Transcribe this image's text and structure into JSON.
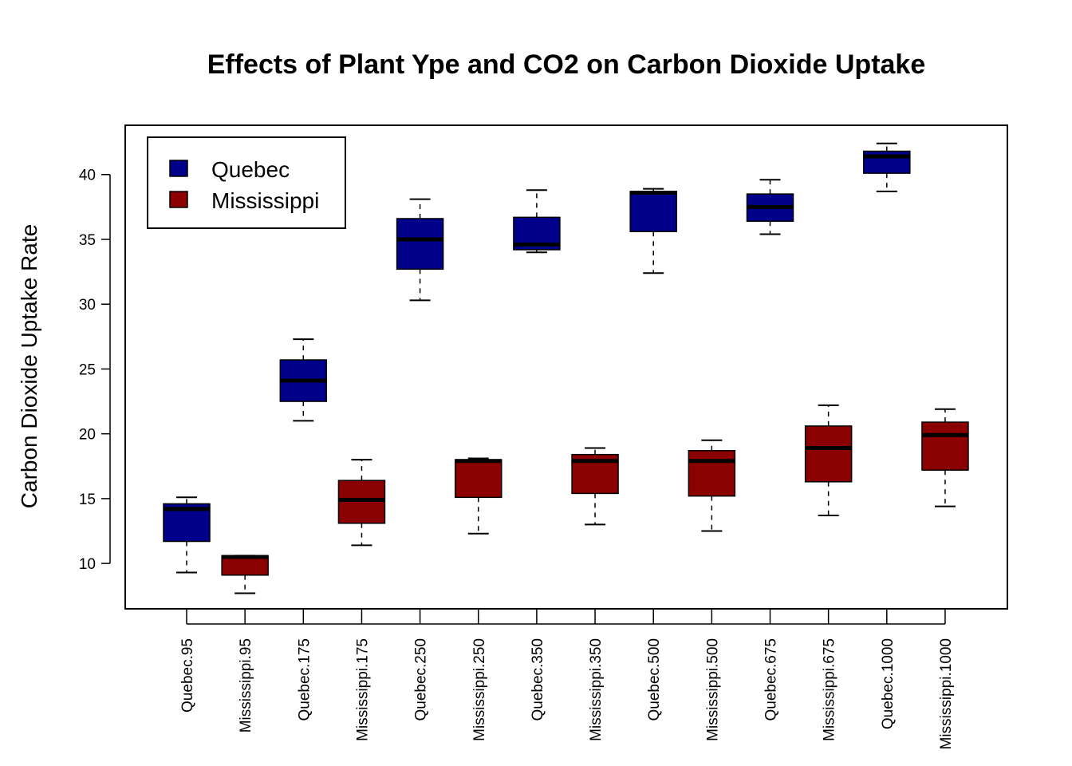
{
  "chart_data": {
    "type": "boxplot",
    "title": "Effects of Plant Ype and CO2 on Carbon Dioxide Uptake",
    "xlabel": "",
    "ylabel": "Carbon Dioxide Uptake Rate",
    "ylim": [
      6.5,
      43.8
    ],
    "yticks": [
      10,
      15,
      20,
      25,
      30,
      35,
      40
    ],
    "legend": {
      "position": "top-left",
      "items": [
        {
          "label": "Quebec",
          "color": "#00008B"
        },
        {
          "label": "Mississippi",
          "color": "#8B0000"
        }
      ]
    },
    "categories": [
      "Quebec.95",
      "Mississippi.95",
      "Quebec.175",
      "Mississippi.175",
      "Quebec.250",
      "Mississippi.250",
      "Quebec.350",
      "Mississippi.350",
      "Quebec.500",
      "Mississippi.500",
      "Quebec.675",
      "Mississippi.675",
      "Quebec.1000",
      "Mississippi.1000"
    ],
    "colors": [
      "#00008B",
      "#8B0000"
    ],
    "boxes": [
      {
        "min": 9.3,
        "q1": 11.7,
        "median": 14.2,
        "q3": 14.6,
        "max": 15.1
      },
      {
        "min": 7.7,
        "q1": 9.1,
        "median": 10.5,
        "q3": 10.6,
        "max": 10.6
      },
      {
        "min": 21.0,
        "q1": 22.5,
        "median": 24.1,
        "q3": 25.7,
        "max": 27.3
      },
      {
        "min": 11.4,
        "q1": 13.1,
        "median": 14.9,
        "q3": 16.4,
        "max": 18.0
      },
      {
        "min": 30.3,
        "q1": 32.7,
        "median": 35.0,
        "q3": 36.6,
        "max": 38.1
      },
      {
        "min": 12.3,
        "q1": 15.1,
        "median": 17.9,
        "q3": 18.0,
        "max": 18.1
      },
      {
        "min": 34.0,
        "q1": 34.2,
        "median": 34.6,
        "q3": 36.7,
        "max": 38.8
      },
      {
        "min": 13.0,
        "q1": 15.4,
        "median": 17.9,
        "q3": 18.4,
        "max": 18.9
      },
      {
        "min": 32.4,
        "q1": 35.6,
        "median": 38.6,
        "q3": 38.7,
        "max": 38.9
      },
      {
        "min": 12.5,
        "q1": 15.2,
        "median": 17.9,
        "q3": 18.7,
        "max": 19.5
      },
      {
        "min": 35.4,
        "q1": 36.4,
        "median": 37.5,
        "q3": 38.5,
        "max": 39.6
      },
      {
        "min": 13.7,
        "q1": 16.3,
        "median": 18.9,
        "q3": 20.6,
        "max": 22.2
      },
      {
        "min": 38.7,
        "q1": 40.1,
        "median": 41.4,
        "q3": 41.8,
        "max": 42.4
      },
      {
        "min": 14.4,
        "q1": 17.2,
        "median": 19.9,
        "q3": 20.9,
        "max": 21.9
      }
    ]
  }
}
